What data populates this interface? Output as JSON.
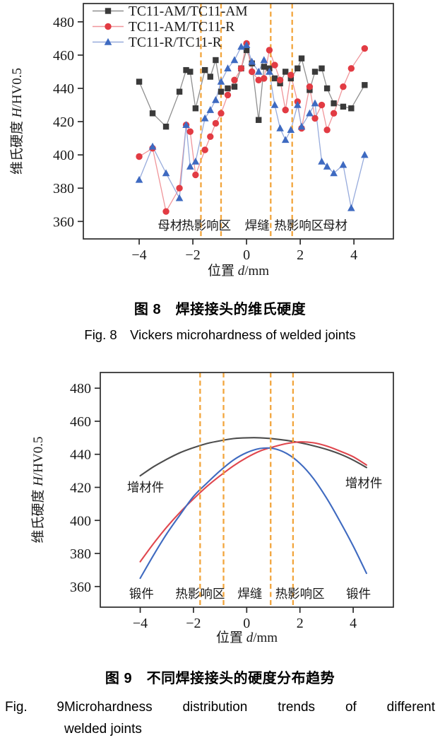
{
  "page": {
    "background": "#ffffff"
  },
  "figure8": {
    "caption_zh": "图 8　焊接接头的维氏硬度",
    "caption_en": "Fig. 8 Vickers microhardness of welded joints"
  },
  "figure9": {
    "caption_zh": "图 9　不同焊接接头的硬度分布趋势",
    "caption_en_tag": "Fig. 9",
    "caption_en_line1": "Microhardness distribution trends of different",
    "caption_en_line2": "welded joints",
    "caption_en_full": "Fig. 9 Microhardness distribution trends of different welded joints"
  },
  "chart_data": [
    {
      "type": "line",
      "id": "fig8-scatter",
      "title": "",
      "xlabel": "位置 d/mm",
      "ylabel": "维氏硬度 H/HV0.5",
      "xlabel_parts": [
        {
          "t": "位置 "
        },
        {
          "t": "d",
          "i": true
        },
        {
          "t": "/mm"
        }
      ],
      "ylabel_parts": [
        {
          "t": "维氏硬度 "
        },
        {
          "t": "H",
          "i": true
        },
        {
          "t": "/HV0.5"
        }
      ],
      "xlim": [
        -6.08,
        5.47
      ],
      "ylim": [
        349.5,
        491
      ],
      "xticks": [
        -4,
        -2,
        0,
        2,
        4
      ],
      "yticks": [
        360,
        380,
        400,
        420,
        440,
        460,
        480
      ],
      "grid": false,
      "legend_position": "top-left",
      "legend": true,
      "colors": {
        "zone_boundary": "#f2a53c",
        "axis": "#2b2b2b"
      },
      "zone_boundaries_x": [
        -1.7,
        -0.95,
        0.9,
        1.7
      ],
      "zone_labels": [
        {
          "text": "母材",
          "x": -2.85
        },
        {
          "text": "热影响区",
          "x": -1.5
        },
        {
          "text": "焊缝",
          "x": 0.4
        },
        {
          "text": "热影响区",
          "x": 1.95
        },
        {
          "text": "母材",
          "x": 3.3
        }
      ],
      "x": [
        -4,
        -3.5,
        -3,
        -2.5,
        -2.25,
        -2.1,
        -1.9,
        -1.55,
        -1.35,
        -1.15,
        -0.95,
        -0.7,
        -0.45,
        -0.2,
        0,
        0.2,
        0.45,
        0.65,
        0.85,
        1.05,
        1.25,
        1.45,
        1.65,
        1.9,
        2.05,
        2.35,
        2.55,
        2.8,
        3,
        3.25,
        3.6,
        3.9,
        4.4
      ],
      "series": [
        {
          "name": "TC11-AM/TC11-AM",
          "id": "tc11am-tc11am",
          "marker": "square",
          "color": "#3a3a3a",
          "line_color": "#8f8f8f",
          "values": [
            444,
            425,
            417,
            438,
            451,
            450,
            428,
            451,
            447,
            457,
            438,
            440,
            441,
            452,
            463,
            455,
            421,
            453,
            452,
            446,
            443,
            450,
            446,
            452,
            458,
            439,
            450,
            452,
            440,
            431,
            429,
            428,
            442
          ]
        },
        {
          "name": "TC11-AM/TC11-R",
          "id": "tc11am-tc11r",
          "marker": "circle",
          "color": "#e23b43",
          "line_color": "#f0959a",
          "values": [
            399,
            404,
            366,
            380,
            418,
            414,
            388,
            403,
            411,
            419,
            425,
            436,
            445,
            452,
            467,
            450,
            445,
            446,
            463,
            454,
            445,
            427,
            448,
            432,
            416,
            441,
            422,
            430,
            415,
            425,
            441,
            452,
            464
          ]
        },
        {
          "name": "TC11-R/TC11-R",
          "id": "tc11r-tc11r",
          "marker": "triangle",
          "color": "#3e6ac1",
          "line_color": "#97abdc",
          "values": [
            385,
            405,
            389,
            374,
            418,
            393,
            396,
            422,
            427,
            433,
            444,
            452,
            457,
            465,
            466,
            456,
            450,
            457,
            450,
            430,
            416,
            409,
            415,
            430,
            417,
            425,
            431,
            396,
            393,
            389,
            394,
            368,
            400
          ]
        }
      ]
    },
    {
      "type": "line",
      "id": "fig9-trends",
      "title": "",
      "xlabel": "位置 d/mm",
      "ylabel": "维氏硬度 H/HV0.5",
      "xlabel_parts": [
        {
          "t": "位置 "
        },
        {
          "t": "d",
          "i": true
        },
        {
          "t": "/mm"
        }
      ],
      "ylabel_parts": [
        {
          "t": "维氏硬度 "
        },
        {
          "t": "H",
          "i": true
        },
        {
          "t": "/HV0.5"
        }
      ],
      "xlim": [
        -5.5,
        5.51
      ],
      "ylim": [
        347.5,
        489.5
      ],
      "xticks": [
        -4,
        -2,
        0,
        2,
        4
      ],
      "yticks": [
        360,
        380,
        400,
        420,
        440,
        460,
        480
      ],
      "grid": false,
      "legend": false,
      "colors": {
        "zone_boundary": "#f2a53c",
        "axis": "#2b2b2b"
      },
      "zone_boundaries_x": [
        -1.75,
        -0.87,
        0.9,
        1.74
      ],
      "zone_labels": [
        {
          "text": "锻件",
          "x": -3.95
        },
        {
          "text": "热影响区",
          "x": -1.75
        },
        {
          "text": "焊缝",
          "x": 0.12
        },
        {
          "text": "热影响区",
          "x": 2.0
        },
        {
          "text": "锻件",
          "x": 4.2
        }
      ],
      "curve_labels": [
        {
          "text": "增材件",
          "x": -3.8,
          "y": 420
        },
        {
          "text": "增材件",
          "x": 4.4,
          "y": 422.5
        }
      ],
      "x": [
        -4,
        -3.5,
        -3,
        -2.5,
        -2,
        -1.5,
        -1,
        -0.5,
        0,
        0.5,
        1,
        1.5,
        2,
        2.5,
        3,
        3.5,
        4,
        4.5
      ],
      "series": [
        {
          "name": "",
          "id": "trend-black",
          "color_name": "black",
          "marker": null,
          "color": "#4d4d4d",
          "line_color": "#4d4d4d",
          "values": [
            427,
            432.5,
            437,
            441,
            444,
            446.5,
            448.2,
            449.5,
            450,
            450,
            449.4,
            448.4,
            447,
            445.2,
            443,
            440.2,
            436.5,
            432
          ]
        },
        {
          "name": "",
          "id": "trend-red",
          "color_name": "red",
          "marker": null,
          "color": "#e0474e",
          "line_color": "#e0474e",
          "values": [
            375,
            386,
            396,
            405,
            413,
            420.5,
            427,
            433,
            438,
            442,
            444.5,
            446.5,
            447.5,
            447,
            445,
            442,
            438.5,
            433.5
          ]
        },
        {
          "name": "",
          "id": "trend-blue",
          "color_name": "blue",
          "marker": null,
          "color": "#3f6ac0",
          "line_color": "#3f6ac0",
          "values": [
            365,
            379,
            392,
            403.5,
            414.5,
            422.5,
            430,
            436.5,
            441,
            443.5,
            443.5,
            440.5,
            434.5,
            425.5,
            413.5,
            399.5,
            384.5,
            368
          ]
        }
      ]
    }
  ]
}
